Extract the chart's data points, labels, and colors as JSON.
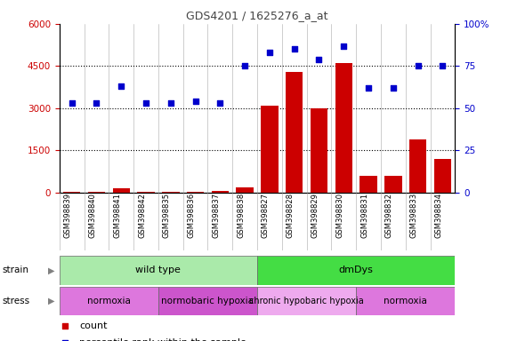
{
  "title": "GDS4201 / 1625276_a_at",
  "samples": [
    "GSM398839",
    "GSM398840",
    "GSM398841",
    "GSM398842",
    "GSM398835",
    "GSM398836",
    "GSM398837",
    "GSM398838",
    "GSM398827",
    "GSM398828",
    "GSM398829",
    "GSM398830",
    "GSM398831",
    "GSM398832",
    "GSM398833",
    "GSM398834"
  ],
  "counts": [
    30,
    40,
    150,
    20,
    40,
    30,
    50,
    180,
    3100,
    4300,
    3000,
    4600,
    600,
    600,
    1900,
    1200
  ],
  "percentile_pct": [
    53,
    53,
    63,
    53,
    53,
    54,
    53,
    75,
    83,
    85,
    79,
    87,
    62,
    62,
    75,
    75
  ],
  "left_yticks": [
    0,
    1500,
    3000,
    4500,
    6000
  ],
  "right_yticks": [
    0,
    25,
    50,
    75,
    100
  ],
  "left_ylim": [
    0,
    6000
  ],
  "right_ylim": [
    0,
    100
  ],
  "bar_color": "#cc0000",
  "dot_color": "#0000cc",
  "strain_labels": [
    {
      "label": "wild type",
      "start": 0,
      "end": 8,
      "color": "#aaeaaa"
    },
    {
      "label": "dmDys",
      "start": 8,
      "end": 16,
      "color": "#44dd44"
    }
  ],
  "stress_labels": [
    {
      "label": "normoxia",
      "start": 0,
      "end": 4,
      "color": "#dd77dd"
    },
    {
      "label": "normobaric hypoxia",
      "start": 4,
      "end": 8,
      "color": "#cc55cc"
    },
    {
      "label": "chronic hypobaric hypoxia",
      "start": 8,
      "end": 12,
      "color": "#eeaaee"
    },
    {
      "label": "normoxia",
      "start": 12,
      "end": 16,
      "color": "#dd77dd"
    }
  ],
  "title_color": "#444444",
  "left_tick_color": "#cc0000",
  "right_tick_color": "#0000cc",
  "bg_color": "#ffffff"
}
